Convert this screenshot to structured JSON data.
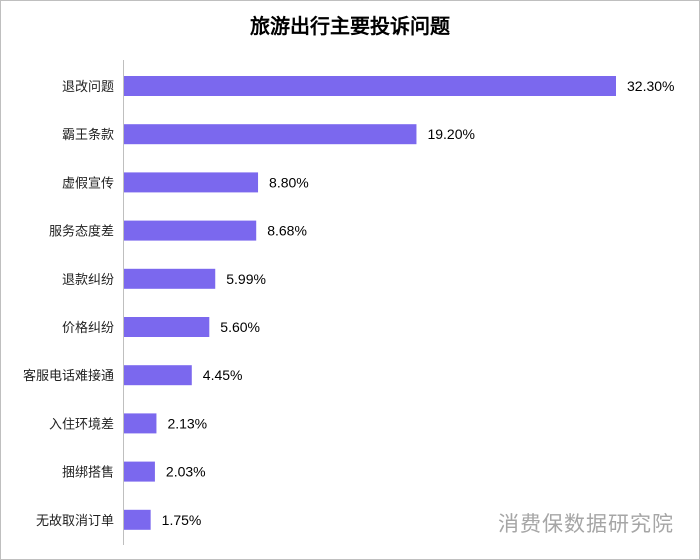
{
  "chart_data": {
    "type": "bar",
    "orientation": "horizontal",
    "title": "旅游出行主要投诉问题",
    "categories": [
      "退改问题",
      "霸王条款",
      "虚假宣传",
      "服务态度差",
      "退款纠纷",
      "价格纠纷",
      "客服电话难接通",
      "入住环境差",
      "捆绑搭售",
      "无故取消订单"
    ],
    "values": [
      32.3,
      19.2,
      8.8,
      8.68,
      5.99,
      5.6,
      4.45,
      2.13,
      2.03,
      1.75
    ],
    "value_labels": [
      "32.30%",
      "19.20%",
      "8.80%",
      "8.68%",
      "5.99%",
      "5.60%",
      "4.45%",
      "2.13%",
      "2.03%",
      "1.75%"
    ],
    "xlim": [
      0,
      32.3
    ],
    "bar_color": "#7b68ee",
    "grid": false,
    "legend": false
  },
  "watermark": "消费保数据研究院"
}
